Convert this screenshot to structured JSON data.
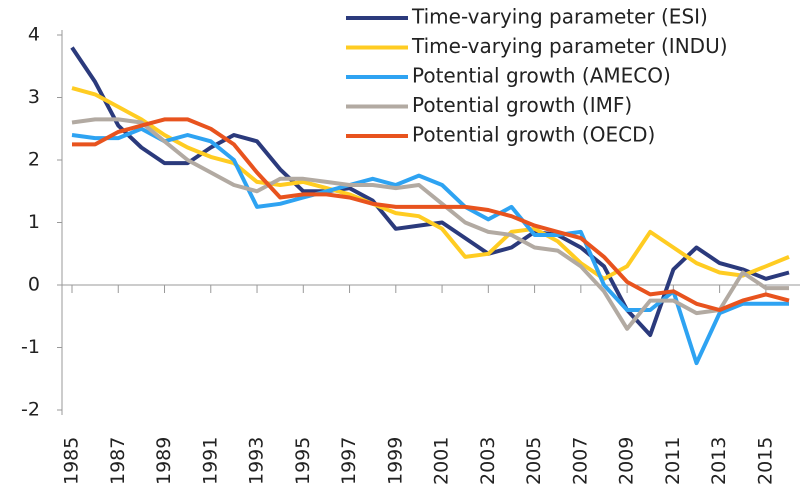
{
  "chart_data": {
    "type": "line",
    "x": [
      1985,
      1986,
      1987,
      1988,
      1989,
      1990,
      1991,
      1992,
      1993,
      1994,
      1995,
      1996,
      1997,
      1998,
      1999,
      2000,
      2001,
      2002,
      2003,
      2004,
      2005,
      2006,
      2007,
      2008,
      2009,
      2010,
      2011,
      2012,
      2013,
      2014,
      2015,
      2016
    ],
    "xlim": [
      1985,
      2016
    ],
    "xticks": [
      1985,
      1987,
      1989,
      1991,
      1993,
      1995,
      1997,
      1999,
      2001,
      2003,
      2005,
      2007,
      2009,
      2011,
      2013,
      2015
    ],
    "ylim": [
      -2,
      4
    ],
    "yticks": [
      -2,
      -1,
      0,
      1,
      2,
      3,
      4
    ],
    "legend": "top-right",
    "series": [
      {
        "name": "Time-varying parameter (ESI)",
        "color": "#2b3a7c",
        "values": [
          3.8,
          3.25,
          2.55,
          2.2,
          1.95,
          1.95,
          2.2,
          2.4,
          2.3,
          1.85,
          1.5,
          1.5,
          1.55,
          1.35,
          0.9,
          0.95,
          1.0,
          0.75,
          0.5,
          0.6,
          0.85,
          0.8,
          0.6,
          0.3,
          -0.4,
          -0.8,
          0.25,
          0.6,
          0.35,
          0.25,
          0.1,
          0.2
        ]
      },
      {
        "name": "Time-varying parameter (INDU)",
        "color": "#ffcc22",
        "values": [
          3.15,
          3.05,
          2.85,
          2.65,
          2.4,
          2.2,
          2.05,
          1.95,
          1.65,
          1.6,
          1.65,
          1.55,
          1.45,
          1.3,
          1.15,
          1.1,
          0.9,
          0.45,
          0.5,
          0.85,
          0.9,
          0.7,
          0.35,
          0.1,
          0.3,
          0.85,
          0.6,
          0.35,
          0.2,
          0.15,
          0.3,
          0.45
        ]
      },
      {
        "name": "Potential growth (AMECO)",
        "color": "#2ea3f2",
        "values": [
          2.4,
          2.35,
          2.35,
          2.5,
          2.3,
          2.4,
          2.3,
          2.0,
          1.25,
          1.3,
          1.4,
          1.5,
          1.6,
          1.7,
          1.6,
          1.75,
          1.6,
          1.25,
          1.05,
          1.25,
          0.8,
          0.8,
          0.85,
          0.0,
          -0.4,
          -0.4,
          -0.1,
          -1.25,
          -0.45,
          -0.3,
          -0.3,
          -0.3
        ]
      },
      {
        "name": "Potential growth (IMF)",
        "color": "#b2aaa2",
        "values": [
          2.6,
          2.65,
          2.65,
          2.6,
          2.3,
          2.0,
          1.8,
          1.6,
          1.5,
          1.7,
          1.7,
          1.65,
          1.6,
          1.6,
          1.55,
          1.6,
          1.3,
          1.0,
          0.85,
          0.8,
          0.6,
          0.55,
          0.3,
          -0.1,
          -0.7,
          -0.25,
          -0.25,
          -0.45,
          -0.4,
          0.2,
          -0.05,
          -0.05
        ]
      },
      {
        "name": "Potential growth (OECD)",
        "color": "#e8531e",
        "values": [
          2.25,
          2.25,
          2.45,
          2.55,
          2.65,
          2.65,
          2.5,
          2.25,
          1.8,
          1.4,
          1.45,
          1.45,
          1.4,
          1.3,
          1.25,
          1.25,
          1.25,
          1.25,
          1.2,
          1.1,
          0.95,
          0.85,
          0.75,
          0.45,
          0.05,
          -0.15,
          -0.1,
          -0.3,
          -0.4,
          -0.25,
          -0.15,
          -0.25
        ]
      }
    ]
  }
}
